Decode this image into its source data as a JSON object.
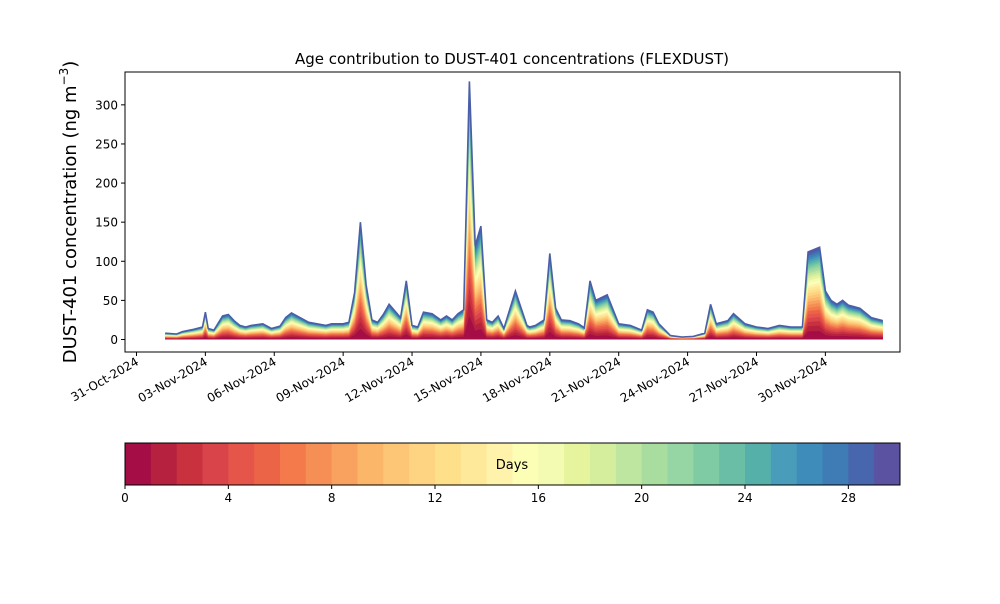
{
  "chart_data": {
    "type": "area",
    "title": "Age contribution to DUST-401 concentrations (FLEXDUST)",
    "ylabel_main": "DUST-401 concentration (ng m",
    "ylabel_sup": "−3",
    "ylabel_close": ")",
    "xlabel": "",
    "ylim": [
      -16,
      342
    ],
    "xlim": [
      "2024-11-01T00:00",
      "2024-12-07T00:00"
    ],
    "yticks": [
      0,
      50,
      100,
      150,
      200,
      250,
      300
    ],
    "xticks": [
      {
        "date": "2024-10-31T00:00",
        "label": "31-Oct-2024"
      },
      {
        "date": "2024-11-03T00:00",
        "label": "03-Nov-2024"
      },
      {
        "date": "2024-11-06T00:00",
        "label": "06-Nov-2024"
      },
      {
        "date": "2024-11-09T00:00",
        "label": "09-Nov-2024"
      },
      {
        "date": "2024-11-12T00:00",
        "label": "12-Nov-2024"
      },
      {
        "date": "2024-11-15T00:00",
        "label": "15-Nov-2024"
      },
      {
        "date": "2024-11-18T00:00",
        "label": "18-Nov-2024"
      },
      {
        "date": "2024-11-21T00:00",
        "label": "21-Nov-2024"
      },
      {
        "date": "2024-11-24T00:00",
        "label": "24-Nov-2024"
      },
      {
        "date": "2024-11-27T00:00",
        "label": "27-Nov-2024"
      },
      {
        "date": "2024-11-30T00:00",
        "label": "30-Nov-2024"
      }
    ],
    "x_range_fallback": [
      "2024-10-30T12:00",
      "2024-12-03T06:00"
    ],
    "total_series": {
      "x": [
        "2024-11-01T06:00",
        "2024-11-01T18:00",
        "2024-11-02T00:00",
        "2024-11-02T12:00",
        "2024-11-02T21:00",
        "2024-11-03T00:00",
        "2024-11-03T03:00",
        "2024-11-03T09:00",
        "2024-11-03T18:00",
        "2024-11-04T00:00",
        "2024-11-04T06:00",
        "2024-11-04T12:00",
        "2024-11-04T18:00",
        "2024-11-05T00:00",
        "2024-11-05T12:00",
        "2024-11-05T21:00",
        "2024-11-06T06:00",
        "2024-11-06T12:00",
        "2024-11-06T18:00",
        "2024-11-07T12:00",
        "2024-11-08T06:00",
        "2024-11-08T12:00",
        "2024-11-08T18:00",
        "2024-11-09T00:00",
        "2024-11-09T06:00",
        "2024-11-09T12:00",
        "2024-11-09T18:00",
        "2024-11-10T00:00",
        "2024-11-10T06:00",
        "2024-11-10T12:00",
        "2024-11-10T18:00",
        "2024-11-11T00:00",
        "2024-11-11T12:00",
        "2024-11-11T18:00",
        "2024-11-12T00:00",
        "2024-11-12T06:00",
        "2024-11-12T12:00",
        "2024-11-12T21:00",
        "2024-11-13T06:00",
        "2024-11-13T12:00",
        "2024-11-13T18:00",
        "2024-11-14T00:00",
        "2024-11-14T06:00",
        "2024-11-14T12:00",
        "2024-11-14T18:00",
        "2024-11-15T00:00",
        "2024-11-15T06:00",
        "2024-11-15T12:00",
        "2024-11-15T18:00",
        "2024-11-16T00:00",
        "2024-11-16T12:00",
        "2024-11-17T00:00",
        "2024-11-17T03:00",
        "2024-11-17T09:00",
        "2024-11-17T18:00",
        "2024-11-18T00:00",
        "2024-11-18T06:00",
        "2024-11-18T12:00",
        "2024-11-18T21:00",
        "2024-11-19T06:00",
        "2024-11-19T12:00",
        "2024-11-19T18:00",
        "2024-11-20T00:00",
        "2024-11-20T12:00",
        "2024-11-21T00:00",
        "2024-11-21T12:00",
        "2024-11-22T00:00",
        "2024-11-22T06:00",
        "2024-11-22T12:00",
        "2024-11-22T18:00",
        "2024-11-23T06:00",
        "2024-11-23T18:00",
        "2024-11-24T06:00",
        "2024-11-24T18:00",
        "2024-11-25T00:00",
        "2024-11-25T06:00",
        "2024-11-25T18:00",
        "2024-11-26T00:00",
        "2024-11-26T12:00",
        "2024-11-27T00:00",
        "2024-11-27T12:00",
        "2024-11-28T00:00",
        "2024-11-28T12:00",
        "2024-11-29T00:00",
        "2024-11-29T06:00",
        "2024-11-29T18:00",
        "2024-11-30T00:00",
        "2024-11-30T06:00",
        "2024-11-30T12:00",
        "2024-11-30T18:00",
        "2024-12-01T00:00",
        "2024-12-01T12:00",
        "2024-12-02T00:00",
        "2024-12-02T12:00"
      ],
      "y": [
        8,
        7,
        10,
        13,
        16,
        35,
        14,
        12,
        30,
        32,
        24,
        18,
        16,
        18,
        20,
        14,
        17,
        28,
        34,
        22,
        18,
        20,
        20,
        20,
        22,
        60,
        150,
        70,
        25,
        22,
        32,
        45,
        28,
        75,
        18,
        16,
        35,
        33,
        25,
        30,
        25,
        33,
        38,
        330,
        120,
        145,
        25,
        22,
        30,
        14,
        62,
        18,
        16,
        18,
        25,
        110,
        40,
        25,
        24,
        20,
        15,
        75,
        50,
        57,
        20,
        18,
        12,
        38,
        35,
        20,
        5,
        3,
        4,
        8,
        45,
        20,
        24,
        33,
        20,
        16,
        14,
        18,
        16,
        16,
        112,
        118,
        62,
        50,
        45,
        50,
        44,
        40,
        28,
        24
      ]
    },
    "colorbar": {
      "label": "Days",
      "vmin": 0,
      "vmax": 30,
      "ticks": [
        0,
        4,
        8,
        12,
        16,
        20,
        24,
        28
      ],
      "colors": [
        "#a50d46",
        "#b6213f",
        "#c9313f",
        "#d9434a",
        "#e5554a",
        "#ec6447",
        "#f47a4c",
        "#f58f55",
        "#f9a260",
        "#fcb669",
        "#fdc676",
        "#fed382",
        "#fee08b",
        "#fee89a",
        "#fff3ab",
        "#fdfeb5",
        "#f3fab1",
        "#e6f49d",
        "#d5ee9e",
        "#bee6a0",
        "#a9dd9f",
        "#96d5a4",
        "#7fcba4",
        "#69bea5",
        "#56b0aa",
        "#4a9dba",
        "#3e8cb9",
        "#3f7cb6",
        "#4866ad",
        "#5b52a2"
      ]
    },
    "grid": false,
    "legend": "none"
  }
}
